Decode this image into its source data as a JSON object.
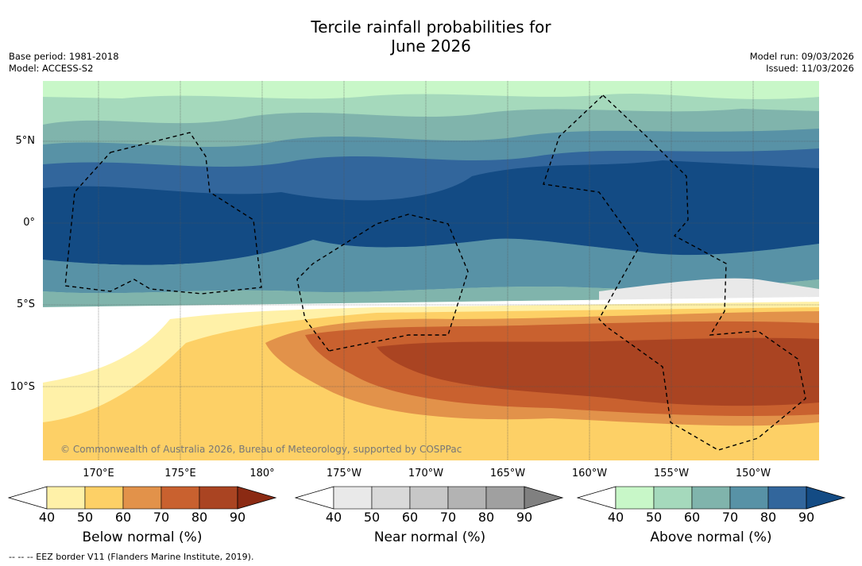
{
  "header": {
    "title_line1": "Tercile rainfall probabilities for",
    "title_line2": "June 2026",
    "base_period": "Base period: 1981-2018",
    "model": "Model: ACCESS-S2",
    "model_run": "Model run: 09/03/2026",
    "issued": "Issued: 11/03/2026"
  },
  "map": {
    "lat_labels": [
      "5°N",
      "0°",
      "5°S",
      "10°S"
    ],
    "lon_labels": [
      "170°E",
      "175°E",
      "180°",
      "175°W",
      "170°W",
      "165°W",
      "160°W",
      "155°W",
      "150°W"
    ],
    "copyright": "© Commonwealth of Australia 2026, Bureau of Meteorology, supported by COSPPac"
  },
  "legend": {
    "ticks": [
      "40",
      "50",
      "60",
      "70",
      "80",
      "90"
    ],
    "below": {
      "title": "Below normal (%)",
      "colors": [
        "#fff1a8",
        "#fdd066",
        "#e2924a",
        "#c9612f",
        "#aa4422",
        "#8b2a13"
      ]
    },
    "near": {
      "title": "Near normal (%)",
      "colors": [
        "#e9e9e9",
        "#d9d9d9",
        "#c7c7c7",
        "#b3b3b3",
        "#a0a0a0",
        "#808080"
      ]
    },
    "above": {
      "title": "Above normal (%)",
      "colors": [
        "#c8f7c8",
        "#a5d9bc",
        "#80b4ac",
        "#5892a6",
        "#32669c",
        "#134b84"
      ]
    }
  },
  "footnote": "--  --  -- EEZ border V11 (Flanders Marine Institute, 2019)."
}
